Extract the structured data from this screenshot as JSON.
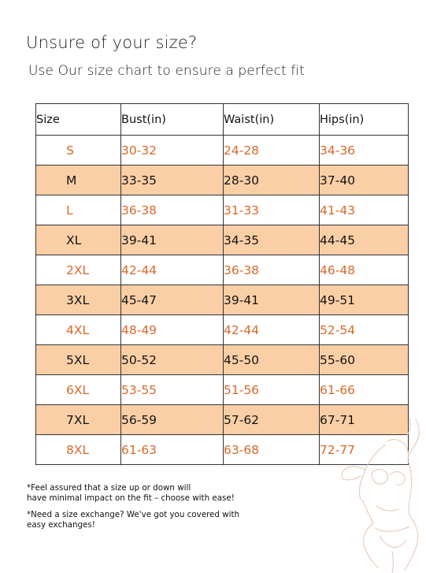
{
  "header": {
    "title": "Unsure of your size?",
    "subtitle": "Use Our size chart to ensure a perfect fit"
  },
  "table": {
    "columns": [
      "Size",
      "Bust(in)",
      "Waist(in)",
      "Hips(in)"
    ],
    "rows": [
      [
        "S",
        "30-32",
        "24-28",
        "34-36"
      ],
      [
        "M",
        "33-35",
        "28-30",
        "37-40"
      ],
      [
        "L",
        "36-38",
        "31-33",
        "41-43"
      ],
      [
        "XL",
        "39-41",
        "34-35",
        "44-45"
      ],
      [
        "2XL",
        "42-44",
        "36-38",
        "46-48"
      ],
      [
        "3XL",
        "45-47",
        "39-41",
        "49-51"
      ],
      [
        "4XL",
        "48-49",
        "42-44",
        "52-54"
      ],
      [
        "5XL",
        "50-52",
        "45-50",
        "55-60"
      ],
      [
        "6XL",
        "53-55",
        "51-56",
        "61-66"
      ],
      [
        "7XL",
        "56-59",
        "57-62",
        "67-71"
      ],
      [
        "8XL",
        "61-63",
        "63-68",
        "72-77"
      ]
    ]
  },
  "notes": [
    {
      "line1": "*Feel assured that a size up or down will",
      "line2": "have minimal impact on the fit – choose with ease!"
    },
    {
      "line1": "*Need a size exchange? We've got you covered with",
      "line2": " easy exchanges!"
    }
  ],
  "colors": {
    "accent_text": "#d8692a",
    "shaded_row": "#fbcfa6",
    "border": "#333333"
  },
  "icons": {
    "decoration": "body-outline-illustration"
  }
}
